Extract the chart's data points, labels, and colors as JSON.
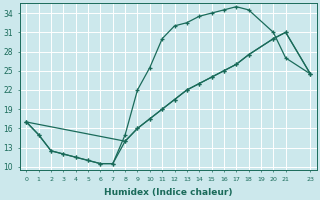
{
  "xlabel": "Humidex (Indice chaleur)",
  "bg_color": "#cce8ec",
  "grid_color": "#ffffff",
  "line_color": "#1a6b5a",
  "xlim": [
    -0.5,
    23.5
  ],
  "ylim": [
    9.5,
    35.5
  ],
  "yticks": [
    10,
    13,
    16,
    19,
    22,
    25,
    28,
    31,
    34
  ],
  "xticks": [
    0,
    1,
    2,
    3,
    4,
    5,
    6,
    7,
    8,
    9,
    10,
    11,
    12,
    13,
    14,
    15,
    16,
    17,
    18,
    19,
    20,
    21,
    23
  ],
  "xtick_labels": [
    "0",
    "1",
    "2",
    "3",
    "4",
    "5",
    "6",
    "7",
    "8",
    "9",
    "10",
    "11",
    "12",
    "13",
    "14",
    "15",
    "16",
    "17",
    "18",
    "19",
    "20",
    "21",
    "23"
  ],
  "line1_x": [
    0,
    1,
    2,
    3,
    4,
    5,
    6,
    7,
    8,
    9,
    10,
    11,
    12,
    13,
    14,
    15,
    16,
    17,
    18,
    20,
    21,
    23
  ],
  "line1_y": [
    17,
    15,
    12.5,
    12,
    11.5,
    11,
    10.5,
    10.5,
    15,
    22,
    25.5,
    30,
    32,
    32.5,
    33.5,
    34,
    34.5,
    35,
    34.5,
    31,
    27,
    24.5
  ],
  "line2_x": [
    0,
    8,
    9,
    10,
    11,
    12,
    13,
    14,
    15,
    16,
    17,
    18,
    20,
    21,
    23
  ],
  "line2_y": [
    17,
    14,
    16,
    17.5,
    19,
    20.5,
    22,
    23,
    24,
    25,
    26,
    27.5,
    30,
    31,
    24.5
  ],
  "line3_x": [
    0,
    1,
    2,
    3,
    4,
    5,
    6,
    7,
    8,
    9,
    10,
    11,
    12,
    13,
    14,
    15,
    16,
    17,
    18,
    20,
    21,
    23
  ],
  "line3_y": [
    17,
    15,
    12.5,
    12,
    11.5,
    11,
    10.5,
    10.5,
    14,
    16,
    17.5,
    19,
    20.5,
    22,
    23,
    24,
    25,
    26,
    27.5,
    30,
    31,
    24.5
  ]
}
